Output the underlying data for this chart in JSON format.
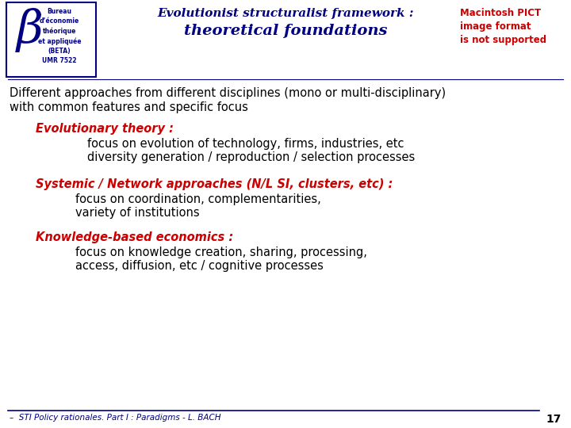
{
  "bg_color": "#ffffff",
  "title_line1": "Evolutionist structuralist framework :",
  "title_line2": "theoretical foundations",
  "title_color": "#000080",
  "header_logo_text": "Bureau\nd’économie\nthéorique\net appliquée\n(BETA)\nUMR 7522",
  "header_logo_color": "#000080",
  "pict_text": "Macintosh PICT\nimage format\nis not supported",
  "pict_color": "#cc0000",
  "intro_line1": "Different approaches from different disciplines (mono or multi-disciplinary)",
  "intro_line2": "with common features and specific focus",
  "intro_color": "#000000",
  "section1_title": "Evolutionary theory :",
  "section1_color": "#cc0000",
  "section1_body": [
    "focus on evolution of technology, firms, industries, etc",
    "diversity generation / reproduction / selection processes"
  ],
  "section2_title": "Systemic / Network approaches (N/L SI, clusters, etc) :",
  "section2_color": "#cc0000",
  "section2_body": [
    "focus on coordination, complementarities,",
    "variety of institutions"
  ],
  "section3_title": "Knowledge-based economics :",
  "section3_color": "#cc0000",
  "section3_body": [
    "focus on knowledge creation, sharing, processing,",
    "access, diffusion, etc / cognitive processes"
  ],
  "body_color": "#000000",
  "footer_text": "–  STI Policy rationales. Part I : Paradigms - L. BACH",
  "footer_color": "#000080",
  "page_number": "17",
  "line_color": "#000080",
  "beta_symbol_color": "#000080"
}
